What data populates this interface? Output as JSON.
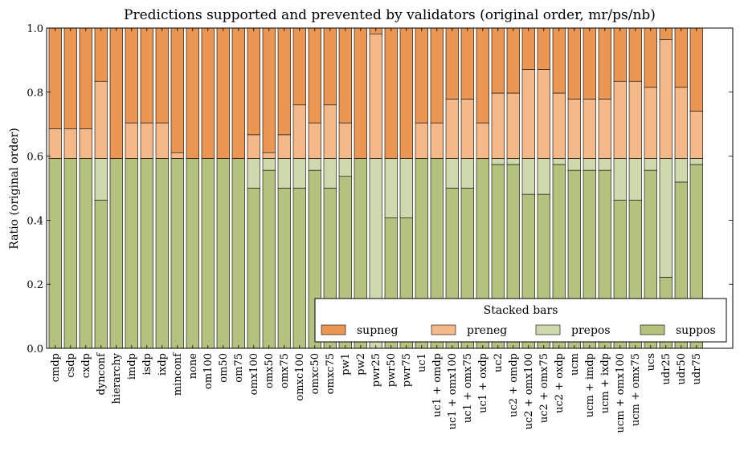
{
  "chart_data": {
    "type": "bar",
    "stacked": true,
    "title": "Predictions supported and prevented by validators (original order, mr/ps/nb)",
    "xlabel": "",
    "ylabel": "Ratio (original order)",
    "ylim": [
      0,
      1.0
    ],
    "yticks": [
      "0.0",
      "0.2",
      "0.4",
      "0.6",
      "0.8",
      "1.0"
    ],
    "grid": false,
    "legend": {
      "title": "Stacked bars",
      "placement": "bottom-right"
    },
    "categories": [
      "cmdp",
      "csdp",
      "cxdp",
      "dynconf",
      "hierarchy",
      "imdp",
      "isdp",
      "ixdp",
      "minconf",
      "none",
      "om100",
      "om50",
      "om75",
      "omx100",
      "omx50",
      "omx75",
      "omxc100",
      "omxc50",
      "omxc75",
      "pw1",
      "pw2",
      "pwr25",
      "pwr50",
      "pwr75",
      "uc1",
      "uc1 + omdp",
      "uc1 + omx100",
      "uc1 + omx75",
      "uc1 + oxdp",
      "uc2",
      "uc2 + omdp",
      "uc2 + omx100",
      "uc2 + omx75",
      "uc2 + oxdp",
      "ucm",
      "ucm + imdp",
      "ucm + ixdp",
      "ucm + omx100",
      "ucm + omx75",
      "ucs",
      "udr25",
      "udr50",
      "udr75"
    ],
    "series": [
      {
        "name": "suppos",
        "color": "#b5c27f",
        "values": [
          0.593,
          0.593,
          0.593,
          0.463,
          0.593,
          0.593,
          0.593,
          0.593,
          0.593,
          0.593,
          0.593,
          0.593,
          0.593,
          0.5,
          0.556,
          0.5,
          0.5,
          0.556,
          0.5,
          0.537,
          0.593,
          0.0,
          0.407,
          0.407,
          0.593,
          0.593,
          0.5,
          0.5,
          0.593,
          0.574,
          0.574,
          0.481,
          0.481,
          0.574,
          0.556,
          0.556,
          0.556,
          0.463,
          0.463,
          0.556,
          0.222,
          0.519,
          0.574
        ]
      },
      {
        "name": "prepos",
        "color": "#cfd9ad",
        "values": [
          0.0,
          0.0,
          0.0,
          0.13,
          0.0,
          0.0,
          0.0,
          0.0,
          0.0,
          0.0,
          0.0,
          0.0,
          0.0,
          0.093,
          0.037,
          0.093,
          0.093,
          0.037,
          0.093,
          0.056,
          0.0,
          0.593,
          0.186,
          0.186,
          0.0,
          0.0,
          0.093,
          0.093,
          0.0,
          0.019,
          0.019,
          0.112,
          0.112,
          0.019,
          0.037,
          0.037,
          0.037,
          0.13,
          0.13,
          0.037,
          0.371,
          0.074,
          0.019
        ]
      },
      {
        "name": "preneg",
        "color": "#f4b889",
        "values": [
          0.093,
          0.093,
          0.093,
          0.241,
          0.0,
          0.111,
          0.111,
          0.111,
          0.018,
          0.0,
          0.0,
          0.0,
          0.0,
          0.074,
          0.018,
          0.074,
          0.167,
          0.111,
          0.167,
          0.111,
          0.0,
          0.389,
          0.0,
          0.0,
          0.111,
          0.111,
          0.185,
          0.185,
          0.111,
          0.204,
          0.204,
          0.278,
          0.278,
          0.204,
          0.185,
          0.185,
          0.185,
          0.241,
          0.241,
          0.222,
          0.371,
          0.222,
          0.148
        ]
      },
      {
        "name": "supneg",
        "color": "#eb9753",
        "values": [
          0.314,
          0.314,
          0.314,
          0.166,
          0.407,
          0.296,
          0.296,
          0.296,
          0.389,
          0.407,
          0.407,
          0.407,
          0.407,
          0.333,
          0.389,
          0.333,
          0.24,
          0.296,
          0.24,
          0.296,
          0.407,
          0.018,
          0.407,
          0.407,
          0.296,
          0.296,
          0.222,
          0.222,
          0.296,
          0.203,
          0.203,
          0.129,
          0.129,
          0.203,
          0.222,
          0.222,
          0.222,
          0.166,
          0.166,
          0.185,
          0.036,
          0.185,
          0.259
        ]
      }
    ],
    "legend_order": [
      "supneg",
      "preneg",
      "prepos",
      "suppos"
    ]
  }
}
